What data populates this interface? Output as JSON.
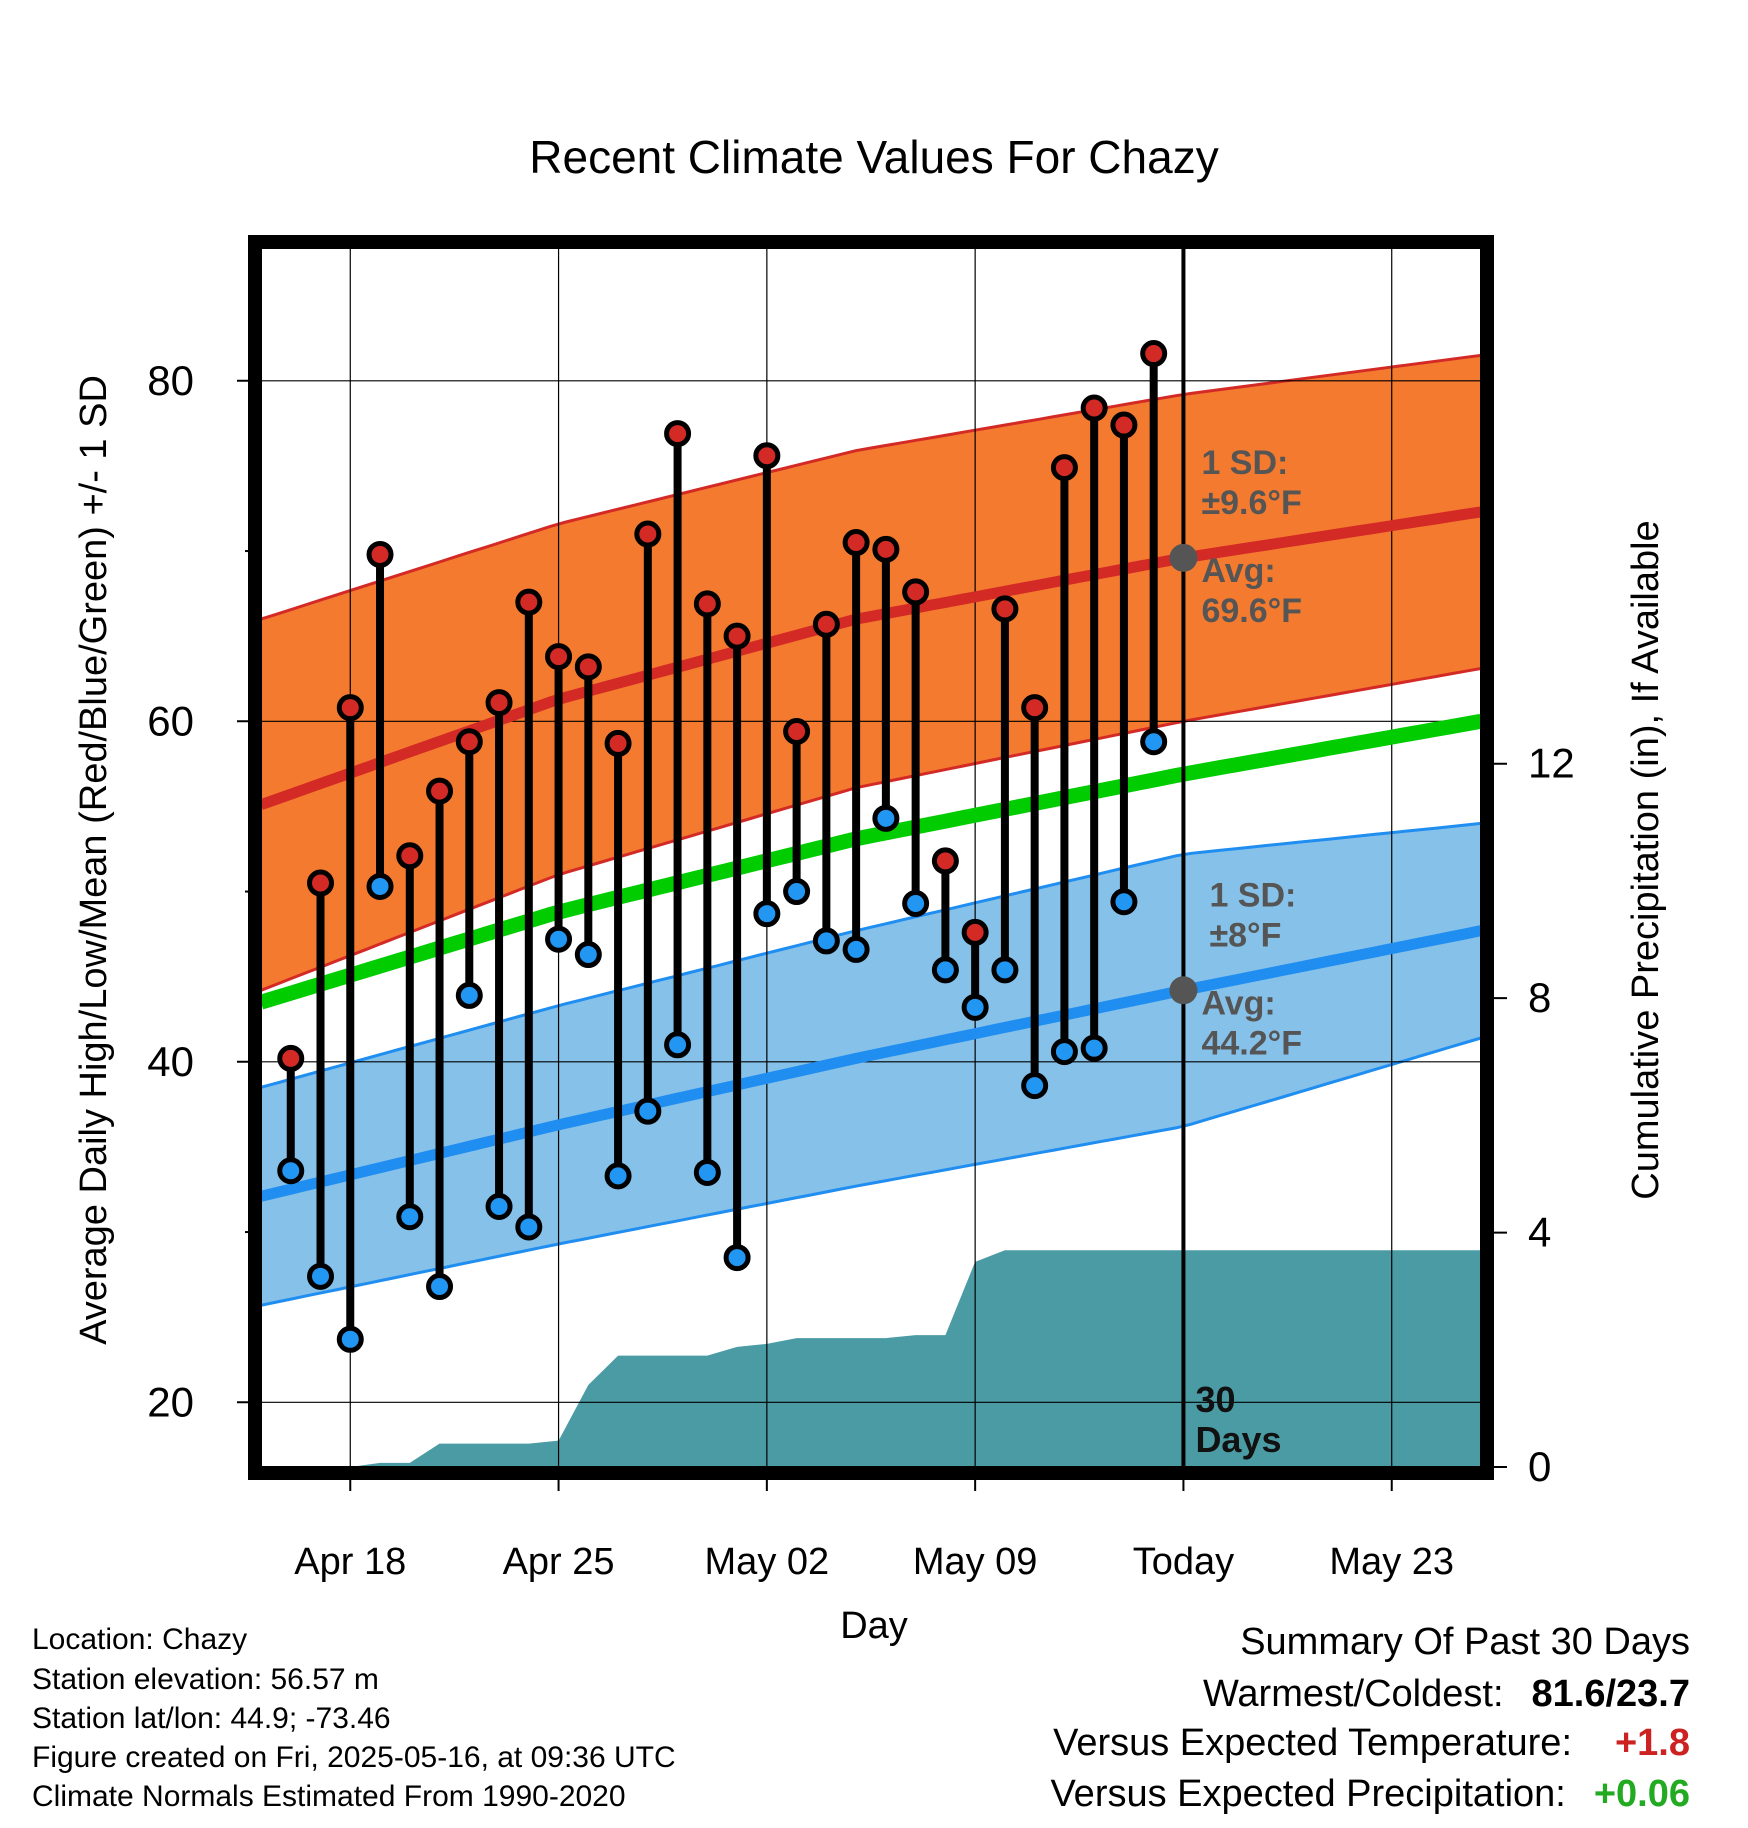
{
  "chart_data": {
    "type": "line",
    "title": "Recent Climate Values For Chazy",
    "xlabel": "Day",
    "ylabel": "Average Daily High/Low/Mean (Red/Blue/Green) +/- 1 SD",
    "y2label": "Cumulative Precipitation (in), If Available",
    "x_start": "Apr 15",
    "x_end": "May 26",
    "ylim": [
      16.2,
      87.8
    ],
    "y2lim": [
      0,
      20.8
    ],
    "yticks": [
      "20",
      "40",
      "60",
      "80"
    ],
    "y2ticks": [
      "0",
      "4",
      "8",
      "12"
    ],
    "xticks": [
      {
        "date": "Apr 18",
        "label": "Apr 18"
      },
      {
        "date": "Apr 25",
        "label": "Apr 25"
      },
      {
        "date": "May 02",
        "label": "May 02"
      },
      {
        "date": "May 09",
        "label": "May 09"
      },
      {
        "date": "May 16",
        "label": "Today"
      },
      {
        "date": "May 23",
        "label": "May 23"
      }
    ],
    "today": "May 16",
    "daily": [
      {
        "date": "Apr 16",
        "high": 40.2,
        "low": 33.6
      },
      {
        "date": "Apr 17",
        "high": 50.5,
        "low": 27.4
      },
      {
        "date": "Apr 18",
        "high": 60.8,
        "low": 23.7
      },
      {
        "date": "Apr 19",
        "high": 69.8,
        "low": 50.3
      },
      {
        "date": "Apr 20",
        "high": 52.1,
        "low": 30.9
      },
      {
        "date": "Apr 21",
        "high": 55.9,
        "low": 26.8
      },
      {
        "date": "Apr 22",
        "high": 58.8,
        "low": 43.9
      },
      {
        "date": "Apr 23",
        "high": 61.1,
        "low": 31.5
      },
      {
        "date": "Apr 24",
        "high": 67.0,
        "low": 30.3
      },
      {
        "date": "Apr 25",
        "high": 63.8,
        "low": 47.2
      },
      {
        "date": "Apr 26",
        "high": 63.2,
        "low": 46.3
      },
      {
        "date": "Apr 27",
        "high": 58.7,
        "low": 33.3
      },
      {
        "date": "Apr 28",
        "high": 71.0,
        "low": 37.1
      },
      {
        "date": "Apr 29",
        "high": 76.9,
        "low": 41.0
      },
      {
        "date": "Apr 30",
        "high": 66.9,
        "low": 33.5
      },
      {
        "date": "May 01",
        "high": 65.0,
        "low": 28.5
      },
      {
        "date": "May 02",
        "high": 75.6,
        "low": 48.7
      },
      {
        "date": "May 03",
        "high": 59.4,
        "low": 50.0
      },
      {
        "date": "May 04",
        "high": 65.7,
        "low": 47.1
      },
      {
        "date": "May 05",
        "high": 70.5,
        "low": 46.6
      },
      {
        "date": "May 06",
        "high": 70.1,
        "low": 54.3
      },
      {
        "date": "May 07",
        "high": 67.6,
        "low": 49.3
      },
      {
        "date": "May 08",
        "high": 51.8,
        "low": 45.4
      },
      {
        "date": "May 09",
        "high": 47.6,
        "low": 43.2
      },
      {
        "date": "May 10",
        "high": 66.6,
        "low": 45.4
      },
      {
        "date": "May 11",
        "high": 60.8,
        "low": 38.6
      },
      {
        "date": "May 12",
        "high": 74.9,
        "low": 40.6
      },
      {
        "date": "May 13",
        "high": 78.4,
        "low": 40.8
      },
      {
        "date": "May 14",
        "high": 77.4,
        "low": 49.4
      },
      {
        "date": "May 15",
        "high": 81.6,
        "low": 58.8
      }
    ],
    "normals": [
      {
        "date": "Apr 15",
        "high": 55.1,
        "low": 32.1,
        "mean": 43.5,
        "sd_high": 10.9,
        "sd_low": 6.4
      },
      {
        "date": "Apr 25",
        "high": 61.3,
        "low": 36.3,
        "mean": 48.8,
        "sd_high": 10.3,
        "sd_low": 7.0
      },
      {
        "date": "May 05",
        "high": 66.0,
        "low": 40.2,
        "mean": 53.1,
        "sd_high": 9.9,
        "sd_low": 7.5
      },
      {
        "date": "May 16",
        "high": 69.6,
        "low": 44.2,
        "mean": 56.9,
        "sd_high": 9.6,
        "sd_low": 8.0
      },
      {
        "date": "May 26",
        "high": 72.3,
        "low": 47.7,
        "mean": 60.0,
        "sd_high": 9.2,
        "sd_low": 6.3
      }
    ],
    "precip_cumulative": [
      {
        "date": "Apr 15",
        "value": 0.0
      },
      {
        "date": "Apr 18",
        "value": 0.0
      },
      {
        "date": "Apr 19",
        "value": 0.07
      },
      {
        "date": "Apr 20",
        "value": 0.07
      },
      {
        "date": "Apr 21",
        "value": 0.4
      },
      {
        "date": "Apr 24",
        "value": 0.4
      },
      {
        "date": "Apr 25",
        "value": 0.45
      },
      {
        "date": "Apr 26",
        "value": 1.4
      },
      {
        "date": "Apr 27",
        "value": 1.9
      },
      {
        "date": "Apr 30",
        "value": 1.9
      },
      {
        "date": "May 01",
        "value": 2.05
      },
      {
        "date": "May 02",
        "value": 2.1
      },
      {
        "date": "May 03",
        "value": 2.2
      },
      {
        "date": "May 06",
        "value": 2.2
      },
      {
        "date": "May 07",
        "value": 2.25
      },
      {
        "date": "May 08",
        "value": 2.25
      },
      {
        "date": "May 09",
        "value": 3.5
      },
      {
        "date": "May 10",
        "value": 3.7
      },
      {
        "date": "May 26",
        "value": 3.7
      }
    ],
    "colors": {
      "high_band": "#f47a2f",
      "high_line": "#d42a26",
      "low_band": "#86c1e9",
      "low_line": "#1f8ef0",
      "mean_line": "#00cc00",
      "precip": "#4b9ba5",
      "high_dot": "#d42a26",
      "low_dot": "#2196f3",
      "annot": "#555555"
    },
    "annotations": {
      "high_sd_label": "1 SD:",
      "high_sd_value": "±9.6°F",
      "high_avg_label": "Avg:",
      "high_avg_value": "69.6°F",
      "low_sd_label": "1 SD:",
      "low_sd_value": "±8°F",
      "low_avg_label": "Avg:",
      "low_avg_value": "44.2°F",
      "days_number": "30",
      "days_word": "Days"
    }
  },
  "info": {
    "location": "Location: Chazy",
    "elevation": "Station elevation: 56.57 m",
    "latlon": "Station lat/lon: 44.9; -73.46",
    "created": "Figure created on Fri, 2025-05-16, at 09:36 UTC",
    "normals": "Climate Normals Estimated From 1990-2020"
  },
  "summary": {
    "title": "Summary Of Past 30 Days",
    "warm_cold_label": "Warmest/Coldest:",
    "warm_cold_value": "81.6/23.7",
    "temp_label": "Versus Expected Temperature:",
    "temp_value": "+1.8",
    "temp_color": "#cc2222",
    "precip_label": "Versus Expected Precipitation:",
    "precip_value": "+0.06",
    "precip_color": "#22aa22"
  }
}
